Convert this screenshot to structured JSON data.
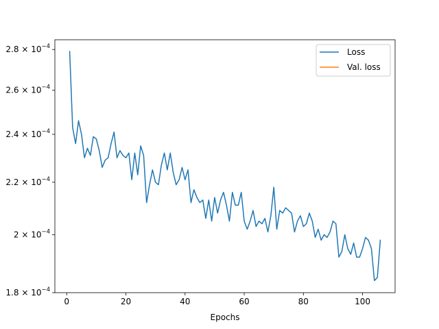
{
  "chart_data": {
    "type": "line",
    "title": "",
    "xlabel": "Epochs",
    "ylabel": "",
    "yscale": "log",
    "xlim": [
      -4,
      111
    ],
    "ylim": [
      0.00018,
      0.000285
    ],
    "grid": false,
    "legend_position": "top-right",
    "x_ticks": [
      0,
      20,
      40,
      60,
      80,
      100
    ],
    "x_tick_labels": [
      "0",
      "20",
      "40",
      "60",
      "80",
      "100"
    ],
    "y_ticks": [
      0.00018,
      0.0002,
      0.00022,
      0.00024,
      0.00026,
      0.00028
    ],
    "y_tick_labels": [
      {
        "mant": "1.8",
        "exp": "−4"
      },
      {
        "mant": "2",
        "exp": "−4"
      },
      {
        "mant": "2.2",
        "exp": "−4"
      },
      {
        "mant": "2.4",
        "exp": "−4"
      },
      {
        "mant": "2.6",
        "exp": "−4"
      },
      {
        "mant": "2.8",
        "exp": "−4"
      }
    ],
    "series": [
      {
        "name": "Loss",
        "color": "#1f77b4",
        "x": [
          1,
          2,
          3,
          4,
          5,
          6,
          7,
          8,
          9,
          10,
          11,
          12,
          13,
          14,
          15,
          16,
          17,
          18,
          19,
          20,
          21,
          22,
          23,
          24,
          25,
          26,
          27,
          28,
          29,
          30,
          31,
          32,
          33,
          34,
          35,
          36,
          37,
          38,
          39,
          40,
          41,
          42,
          43,
          44,
          45,
          46,
          47,
          48,
          49,
          50,
          51,
          52,
          53,
          54,
          55,
          56,
          57,
          58,
          59,
          60,
          61,
          62,
          63,
          64,
          65,
          66,
          67,
          68,
          69,
          70,
          71,
          72,
          73,
          74,
          75,
          76,
          77,
          78,
          79,
          80,
          81,
          82,
          83,
          84,
          85,
          86,
          87,
          88,
          89,
          90,
          91,
          92,
          93,
          94,
          95,
          96,
          97,
          98,
          99,
          100,
          101,
          102,
          103,
          104,
          105,
          106
        ],
        "values": [
          0.000279,
          0.000243,
          0.000236,
          0.000246,
          0.00024,
          0.00023,
          0.000234,
          0.000231,
          0.000239,
          0.000238,
          0.000233,
          0.000226,
          0.000229,
          0.00023,
          0.000236,
          0.000241,
          0.00023,
          0.000233,
          0.000231,
          0.00023,
          0.000232,
          0.000221,
          0.000232,
          0.000223,
          0.000235,
          0.000231,
          0.000212,
          0.000219,
          0.000225,
          0.00022,
          0.000219,
          0.000227,
          0.000232,
          0.000225,
          0.000232,
          0.000224,
          0.000219,
          0.000221,
          0.000226,
          0.000221,
          0.000225,
          0.000212,
          0.000217,
          0.000214,
          0.000212,
          0.000213,
          0.000206,
          0.000213,
          0.000205,
          0.000214,
          0.000208,
          0.000213,
          0.000216,
          0.000211,
          0.000205,
          0.000216,
          0.000211,
          0.000211,
          0.000216,
          0.000205,
          0.000202,
          0.000205,
          0.000209,
          0.000203,
          0.000205,
          0.000204,
          0.000206,
          0.000201,
          0.000207,
          0.000218,
          0.000202,
          0.000209,
          0.000208,
          0.00021,
          0.000209,
          0.000208,
          0.000201,
          0.000205,
          0.000207,
          0.000203,
          0.000204,
          0.000208,
          0.000205,
          0.000199,
          0.000202,
          0.000198,
          0.0002,
          0.000199,
          0.000201,
          0.000205,
          0.000204,
          0.000192,
          0.000194,
          0.0002,
          0.000195,
          0.000193,
          0.000197,
          0.000192,
          0.000192,
          0.000195,
          0.000199,
          0.000198,
          0.000195,
          0.000184,
          0.000185,
          0.000198
        ]
      },
      {
        "name": "Val. loss",
        "color": "#ff7f0e",
        "x": [],
        "values": []
      }
    ]
  }
}
